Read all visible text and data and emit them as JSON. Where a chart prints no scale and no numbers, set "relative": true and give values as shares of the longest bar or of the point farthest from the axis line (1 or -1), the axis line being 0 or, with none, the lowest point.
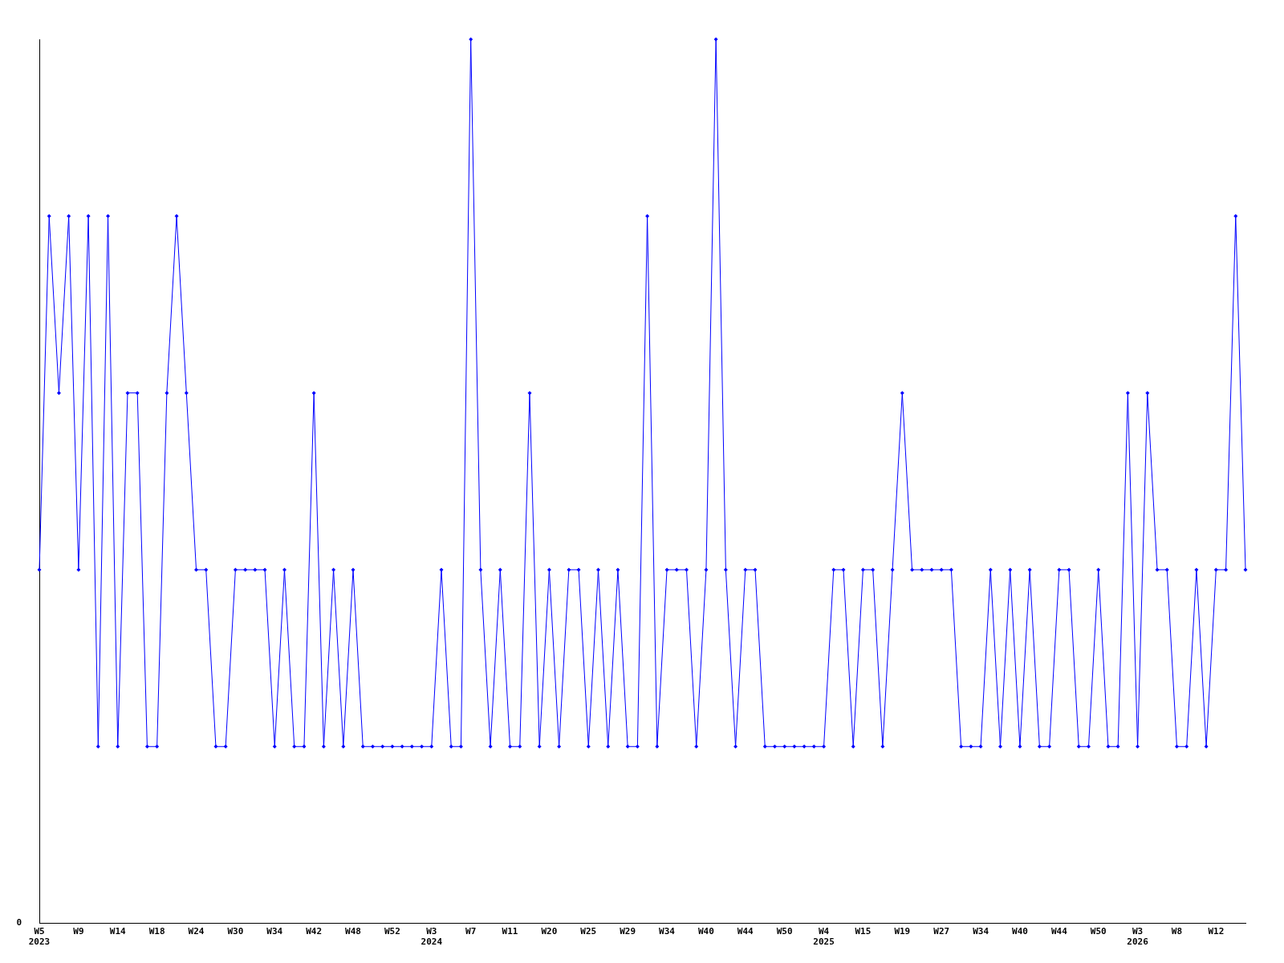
{
  "chart_data": {
    "type": "line",
    "relative": true,
    "color": "#0000ff",
    "marker": "diamond",
    "grid": false,
    "legend": false,
    "annotations": [
      "0"
    ],
    "categories": [
      "W5\n2023",
      null,
      null,
      null,
      "W9",
      null,
      null,
      null,
      "W14",
      null,
      null,
      null,
      "W18",
      null,
      null,
      null,
      "W24",
      null,
      null,
      null,
      "W30",
      null,
      null,
      null,
      "W34",
      null,
      null,
      null,
      "W42",
      null,
      null,
      null,
      "W48",
      null,
      null,
      null,
      "W52",
      null,
      null,
      null,
      "W3\n2024",
      null,
      null,
      null,
      "W7",
      null,
      null,
      null,
      "W11",
      null,
      null,
      null,
      "W20",
      null,
      null,
      null,
      "W25",
      null,
      null,
      null,
      "W29",
      null,
      null,
      null,
      "W34",
      null,
      null,
      null,
      "W40",
      null,
      null,
      null,
      "W44",
      null,
      null,
      null,
      "W50",
      null,
      null,
      null,
      "W4\n2025",
      null,
      null,
      null,
      "W15",
      null,
      null,
      null,
      "W19",
      null,
      null,
      null,
      "W27",
      null,
      null,
      null,
      "W34",
      null,
      null,
      null,
      "W40",
      null,
      null,
      null,
      "W44",
      null,
      null,
      null,
      "W50",
      null,
      null,
      null,
      "W3\n2026",
      null,
      null,
      null,
      "W8",
      null,
      null,
      null,
      "W12",
      null,
      null,
      null
    ],
    "values": [
      0.4,
      0.8,
      0.6,
      0.8,
      0.4,
      0.8,
      0.2,
      0.8,
      0.2,
      0.6,
      0.6,
      0.2,
      0.2,
      0.6,
      0.8,
      0.6,
      0.4,
      0.4,
      0.2,
      0.2,
      0.4,
      0.4,
      0.4,
      0.4,
      0.2,
      0.4,
      0.2,
      0.2,
      0.6,
      0.2,
      0.4,
      0.2,
      0.4,
      0.2,
      0.2,
      0.2,
      0.2,
      0.2,
      0.2,
      0.2,
      0.2,
      0.4,
      0.2,
      0.2,
      1,
      0.4,
      0.2,
      0.4,
      0.2,
      0.2,
      0.6,
      0.2,
      0.4,
      0.2,
      0.4,
      0.4,
      0.2,
      0.4,
      0.2,
      0.4,
      0.2,
      0.2,
      0.8,
      0.2,
      0.4,
      0.4,
      0.4,
      0.2,
      0.4,
      1,
      0.4,
      0.2,
      0.4,
      0.4,
      0.2,
      0.2,
      0.2,
      0.2,
      0.2,
      0.2,
      0.2,
      0.4,
      0.4,
      0.2,
      0.4,
      0.4,
      0.2,
      0.4,
      0.6,
      0.4,
      0.4,
      0.4,
      0.4,
      0.4,
      0.2,
      0.2,
      0.2,
      0.4,
      0.2,
      0.4,
      0.2,
      0.4,
      0.2,
      0.2,
      0.4,
      0.4,
      0.2,
      0.2,
      0.4,
      0.2,
      0.2,
      0.6,
      0.2,
      0.6,
      0.4,
      0.4,
      0.2,
      0.2,
      0.4,
      0.2,
      0.4,
      0.4,
      0.8,
      0.4
    ]
  }
}
